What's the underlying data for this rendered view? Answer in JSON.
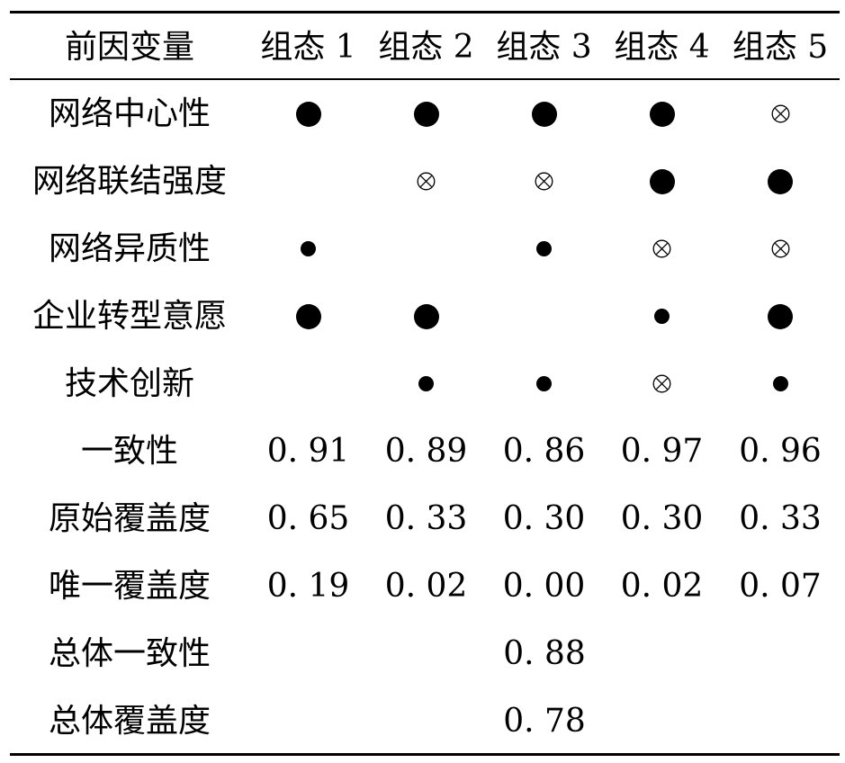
{
  "table": {
    "header": {
      "first": "前因变量",
      "configs": [
        "组态 1",
        "组态 2",
        "组态 3",
        "组态 4",
        "组态 5"
      ]
    },
    "condition_rows": [
      {
        "label": "网络中心性",
        "cells": [
          "core-present",
          "core-present",
          "core-present",
          "core-present",
          "absent"
        ]
      },
      {
        "label": "网络联结强度",
        "cells": [
          "",
          "absent",
          "absent",
          "core-present",
          "core-present"
        ]
      },
      {
        "label": "网络异质性",
        "cells": [
          "peripheral-present",
          "",
          "peripheral-present",
          "absent",
          "absent"
        ]
      },
      {
        "label": "企业转型意愿",
        "cells": [
          "core-present",
          "core-present",
          "",
          "peripheral-present",
          "core-present"
        ]
      },
      {
        "label": "技术创新",
        "cells": [
          "",
          "peripheral-present",
          "peripheral-present",
          "absent",
          "peripheral-present"
        ]
      }
    ],
    "metric_rows": [
      {
        "label": "一致性",
        "values": [
          "0. 91",
          "0. 89",
          "0. 86",
          "0. 97",
          "0. 96"
        ]
      },
      {
        "label": "原始覆盖度",
        "values": [
          "0. 65",
          "0. 33",
          "0. 30",
          "0. 30",
          "0. 33"
        ]
      },
      {
        "label": "唯一覆盖度",
        "values": [
          "0. 19",
          "0. 02",
          "0. 00",
          "0. 02",
          "0. 07"
        ]
      }
    ],
    "overall_rows": [
      {
        "label": "总体一致性",
        "value": "0. 88"
      },
      {
        "label": "总体覆盖度",
        "value": "0. 78"
      }
    ],
    "symbol_icons": {
      "core-present": "large-filled-circle-icon",
      "peripheral-present": "small-filled-circle-icon",
      "absent": "circled-times-icon"
    }
  }
}
